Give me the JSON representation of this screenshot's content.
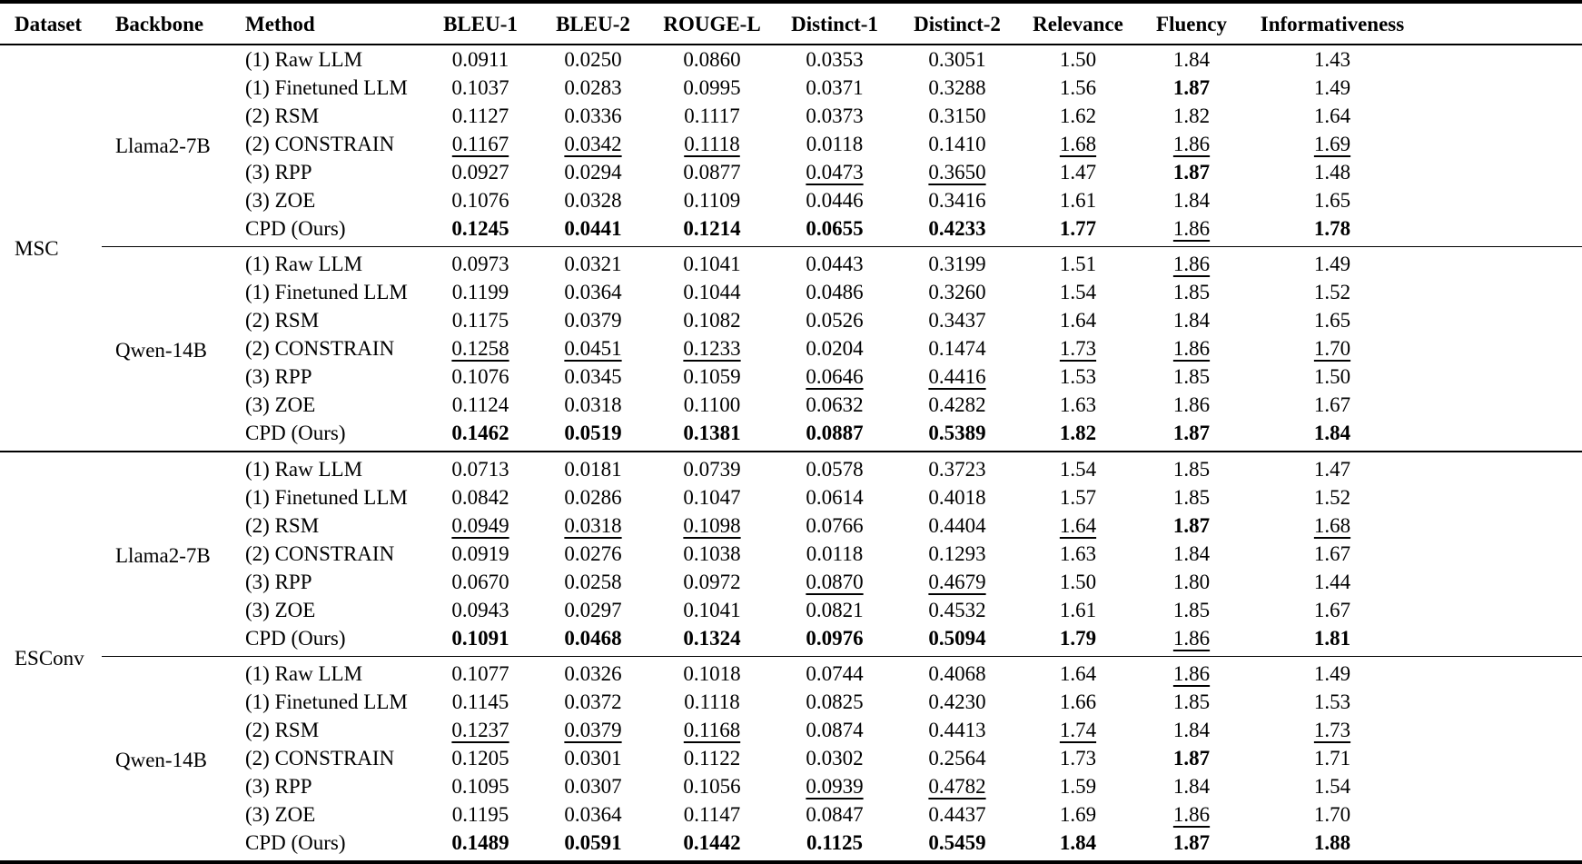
{
  "page": {
    "background_color": "#ffffff",
    "text_color": "#000000"
  },
  "table": {
    "columns": [
      "Dataset",
      "Backbone",
      "Method",
      "BLEU-1",
      "BLEU-2",
      "ROUGE-L",
      "Distinct-1",
      "Distinct-2",
      "Relevance",
      "Fluency",
      "Informativeness"
    ],
    "format_legend": {
      "b": "bold (best)",
      "u": "underline (second best)"
    },
    "groups": [
      {
        "dataset": "MSC",
        "blocks": [
          {
            "backbone": "Llama2-7B",
            "rows": [
              {
                "method": "(1) Raw LLM",
                "values": [
                  "0.0911",
                  "0.0250",
                  "0.0860",
                  "0.0353",
                  "0.3051",
                  "1.50",
                  "1.84",
                  "1.43"
                ],
                "fmt": [
                  "",
                  "",
                  "",
                  "",
                  "",
                  "",
                  "",
                  ""
                ]
              },
              {
                "method": "(1) Finetuned LLM",
                "values": [
                  "0.1037",
                  "0.0283",
                  "0.0995",
                  "0.0371",
                  "0.3288",
                  "1.56",
                  "1.87",
                  "1.49"
                ],
                "fmt": [
                  "",
                  "",
                  "",
                  "",
                  "",
                  "",
                  "b",
                  ""
                ]
              },
              {
                "method": "(2) RSM",
                "values": [
                  "0.1127",
                  "0.0336",
                  "0.1117",
                  "0.0373",
                  "0.3150",
                  "1.62",
                  "1.82",
                  "1.64"
                ],
                "fmt": [
                  "",
                  "",
                  "",
                  "",
                  "",
                  "",
                  "",
                  ""
                ]
              },
              {
                "method": "(2) CONSTRAIN",
                "values": [
                  "0.1167",
                  "0.0342",
                  "0.1118",
                  "0.0118",
                  "0.1410",
                  "1.68",
                  "1.86",
                  "1.69"
                ],
                "fmt": [
                  "u",
                  "u",
                  "u",
                  "",
                  "",
                  "u",
                  "u",
                  "u"
                ]
              },
              {
                "method": "(3) RPP",
                "values": [
                  "0.0927",
                  "0.0294",
                  "0.0877",
                  "0.0473",
                  "0.3650",
                  "1.47",
                  "1.87",
                  "1.48"
                ],
                "fmt": [
                  "",
                  "",
                  "",
                  "u",
                  "u",
                  "",
                  "b",
                  ""
                ]
              },
              {
                "method": "(3) ZOE",
                "values": [
                  "0.1076",
                  "0.0328",
                  "0.1109",
                  "0.0446",
                  "0.3416",
                  "1.61",
                  "1.84",
                  "1.65"
                ],
                "fmt": [
                  "",
                  "",
                  "",
                  "",
                  "",
                  "",
                  "",
                  ""
                ]
              },
              {
                "method": "CPD (Ours)",
                "values": [
                  "0.1245",
                  "0.0441",
                  "0.1214",
                  "0.0655",
                  "0.4233",
                  "1.77",
                  "1.86",
                  "1.78"
                ],
                "fmt": [
                  "b",
                  "b",
                  "b",
                  "b",
                  "b",
                  "b",
                  "u",
                  "b"
                ]
              }
            ]
          },
          {
            "backbone": "Qwen-14B",
            "rows": [
              {
                "method": "(1) Raw LLM",
                "values": [
                  "0.0973",
                  "0.0321",
                  "0.1041",
                  "0.0443",
                  "0.3199",
                  "1.51",
                  "1.86",
                  "1.49"
                ],
                "fmt": [
                  "",
                  "",
                  "",
                  "",
                  "",
                  "",
                  "u",
                  ""
                ]
              },
              {
                "method": "(1) Finetuned LLM",
                "values": [
                  "0.1199",
                  "0.0364",
                  "0.1044",
                  "0.0486",
                  "0.3260",
                  "1.54",
                  "1.85",
                  "1.52"
                ],
                "fmt": [
                  "",
                  "",
                  "",
                  "",
                  "",
                  "",
                  "",
                  ""
                ]
              },
              {
                "method": "(2) RSM",
                "values": [
                  "0.1175",
                  "0.0379",
                  "0.1082",
                  "0.0526",
                  "0.3437",
                  "1.64",
                  "1.84",
                  "1.65"
                ],
                "fmt": [
                  "",
                  "",
                  "",
                  "",
                  "",
                  "",
                  "",
                  ""
                ]
              },
              {
                "method": "(2) CONSTRAIN",
                "values": [
                  "0.1258",
                  "0.0451",
                  "0.1233",
                  "0.0204",
                  "0.1474",
                  "1.73",
                  "1.86",
                  "1.70"
                ],
                "fmt": [
                  "u",
                  "u",
                  "u",
                  "",
                  "",
                  "u",
                  "u",
                  "u"
                ]
              },
              {
                "method": "(3) RPP",
                "values": [
                  "0.1076",
                  "0.0345",
                  "0.1059",
                  "0.0646",
                  "0.4416",
                  "1.53",
                  "1.85",
                  "1.50"
                ],
                "fmt": [
                  "",
                  "",
                  "",
                  "u",
                  "u",
                  "",
                  "",
                  ""
                ]
              },
              {
                "method": "(3) ZOE",
                "values": [
                  "0.1124",
                  "0.0318",
                  "0.1100",
                  "0.0632",
                  "0.4282",
                  "1.63",
                  "1.86",
                  "1.67"
                ],
                "fmt": [
                  "",
                  "",
                  "",
                  "",
                  "",
                  "",
                  "",
                  ""
                ]
              },
              {
                "method": "CPD (Ours)",
                "values": [
                  "0.1462",
                  "0.0519",
                  "0.1381",
                  "0.0887",
                  "0.5389",
                  "1.82",
                  "1.87",
                  "1.84"
                ],
                "fmt": [
                  "b",
                  "b",
                  "b",
                  "b",
                  "b",
                  "b",
                  "b",
                  "b"
                ]
              }
            ]
          }
        ]
      },
      {
        "dataset": "ESConv",
        "blocks": [
          {
            "backbone": "Llama2-7B",
            "rows": [
              {
                "method": "(1) Raw LLM",
                "values": [
                  "0.0713",
                  "0.0181",
                  "0.0739",
                  "0.0578",
                  "0.3723",
                  "1.54",
                  "1.85",
                  "1.47"
                ],
                "fmt": [
                  "",
                  "",
                  "",
                  "",
                  "",
                  "",
                  "",
                  ""
                ]
              },
              {
                "method": "(1) Finetuned LLM",
                "values": [
                  "0.0842",
                  "0.0286",
                  "0.1047",
                  "0.0614",
                  "0.4018",
                  "1.57",
                  "1.85",
                  "1.52"
                ],
                "fmt": [
                  "",
                  "",
                  "",
                  "",
                  "",
                  "",
                  "",
                  ""
                ]
              },
              {
                "method": "(2) RSM",
                "values": [
                  "0.0949",
                  "0.0318",
                  "0.1098",
                  "0.0766",
                  "0.4404",
                  "1.64",
                  "1.87",
                  "1.68"
                ],
                "fmt": [
                  "u",
                  "u",
                  "u",
                  "",
                  "",
                  "u",
                  "b",
                  "u"
                ]
              },
              {
                "method": "(2) CONSTRAIN",
                "values": [
                  "0.0919",
                  "0.0276",
                  "0.1038",
                  "0.0118",
                  "0.1293",
                  "1.63",
                  "1.84",
                  "1.67"
                ],
                "fmt": [
                  "",
                  "",
                  "",
                  "",
                  "",
                  "",
                  "",
                  ""
                ]
              },
              {
                "method": "(3) RPP",
                "values": [
                  "0.0670",
                  "0.0258",
                  "0.0972",
                  "0.0870",
                  "0.4679",
                  "1.50",
                  "1.80",
                  "1.44"
                ],
                "fmt": [
                  "",
                  "",
                  "",
                  "u",
                  "u",
                  "",
                  "",
                  ""
                ]
              },
              {
                "method": "(3) ZOE",
                "values": [
                  "0.0943",
                  "0.0297",
                  "0.1041",
                  "0.0821",
                  "0.4532",
                  "1.61",
                  "1.85",
                  "1.67"
                ],
                "fmt": [
                  "",
                  "",
                  "",
                  "",
                  "",
                  "",
                  "",
                  ""
                ]
              },
              {
                "method": "CPD (Ours)",
                "values": [
                  "0.1091",
                  "0.0468",
                  "0.1324",
                  "0.0976",
                  "0.5094",
                  "1.79",
                  "1.86",
                  "1.81"
                ],
                "fmt": [
                  "b",
                  "b",
                  "b",
                  "b",
                  "b",
                  "b",
                  "u",
                  "b"
                ]
              }
            ]
          },
          {
            "backbone": "Qwen-14B",
            "rows": [
              {
                "method": "(1) Raw LLM",
                "values": [
                  "0.1077",
                  "0.0326",
                  "0.1018",
                  "0.0744",
                  "0.4068",
                  "1.64",
                  "1.86",
                  "1.49"
                ],
                "fmt": [
                  "",
                  "",
                  "",
                  "",
                  "",
                  "",
                  "u",
                  ""
                ]
              },
              {
                "method": "(1) Finetuned LLM",
                "values": [
                  "0.1145",
                  "0.0372",
                  "0.1118",
                  "0.0825",
                  "0.4230",
                  "1.66",
                  "1.85",
                  "1.53"
                ],
                "fmt": [
                  "",
                  "",
                  "",
                  "",
                  "",
                  "",
                  "",
                  ""
                ]
              },
              {
                "method": "(2) RSM",
                "values": [
                  "0.1237",
                  "0.0379",
                  "0.1168",
                  "0.0874",
                  "0.4413",
                  "1.74",
                  "1.84",
                  "1.73"
                ],
                "fmt": [
                  "u",
                  "u",
                  "u",
                  "",
                  "",
                  "u",
                  "",
                  "u"
                ]
              },
              {
                "method": "(2) CONSTRAIN",
                "values": [
                  "0.1205",
                  "0.0301",
                  "0.1122",
                  "0.0302",
                  "0.2564",
                  "1.73",
                  "1.87",
                  "1.71"
                ],
                "fmt": [
                  "",
                  "",
                  "",
                  "",
                  "",
                  "",
                  "b",
                  ""
                ]
              },
              {
                "method": "(3) RPP",
                "values": [
                  "0.1095",
                  "0.0307",
                  "0.1056",
                  "0.0939",
                  "0.4782",
                  "1.59",
                  "1.84",
                  "1.54"
                ],
                "fmt": [
                  "",
                  "",
                  "",
                  "u",
                  "u",
                  "",
                  "",
                  ""
                ]
              },
              {
                "method": "(3) ZOE",
                "values": [
                  "0.1195",
                  "0.0364",
                  "0.1147",
                  "0.0847",
                  "0.4437",
                  "1.69",
                  "1.86",
                  "1.70"
                ],
                "fmt": [
                  "",
                  "",
                  "",
                  "",
                  "",
                  "",
                  "u",
                  ""
                ]
              },
              {
                "method": "CPD (Ours)",
                "values": [
                  "0.1489",
                  "0.0591",
                  "0.1442",
                  "0.1125",
                  "0.5459",
                  "1.84",
                  "1.87",
                  "1.88"
                ],
                "fmt": [
                  "b",
                  "b",
                  "b",
                  "b",
                  "b",
                  "b",
                  "b",
                  "b"
                ]
              }
            ]
          }
        ]
      }
    ]
  }
}
